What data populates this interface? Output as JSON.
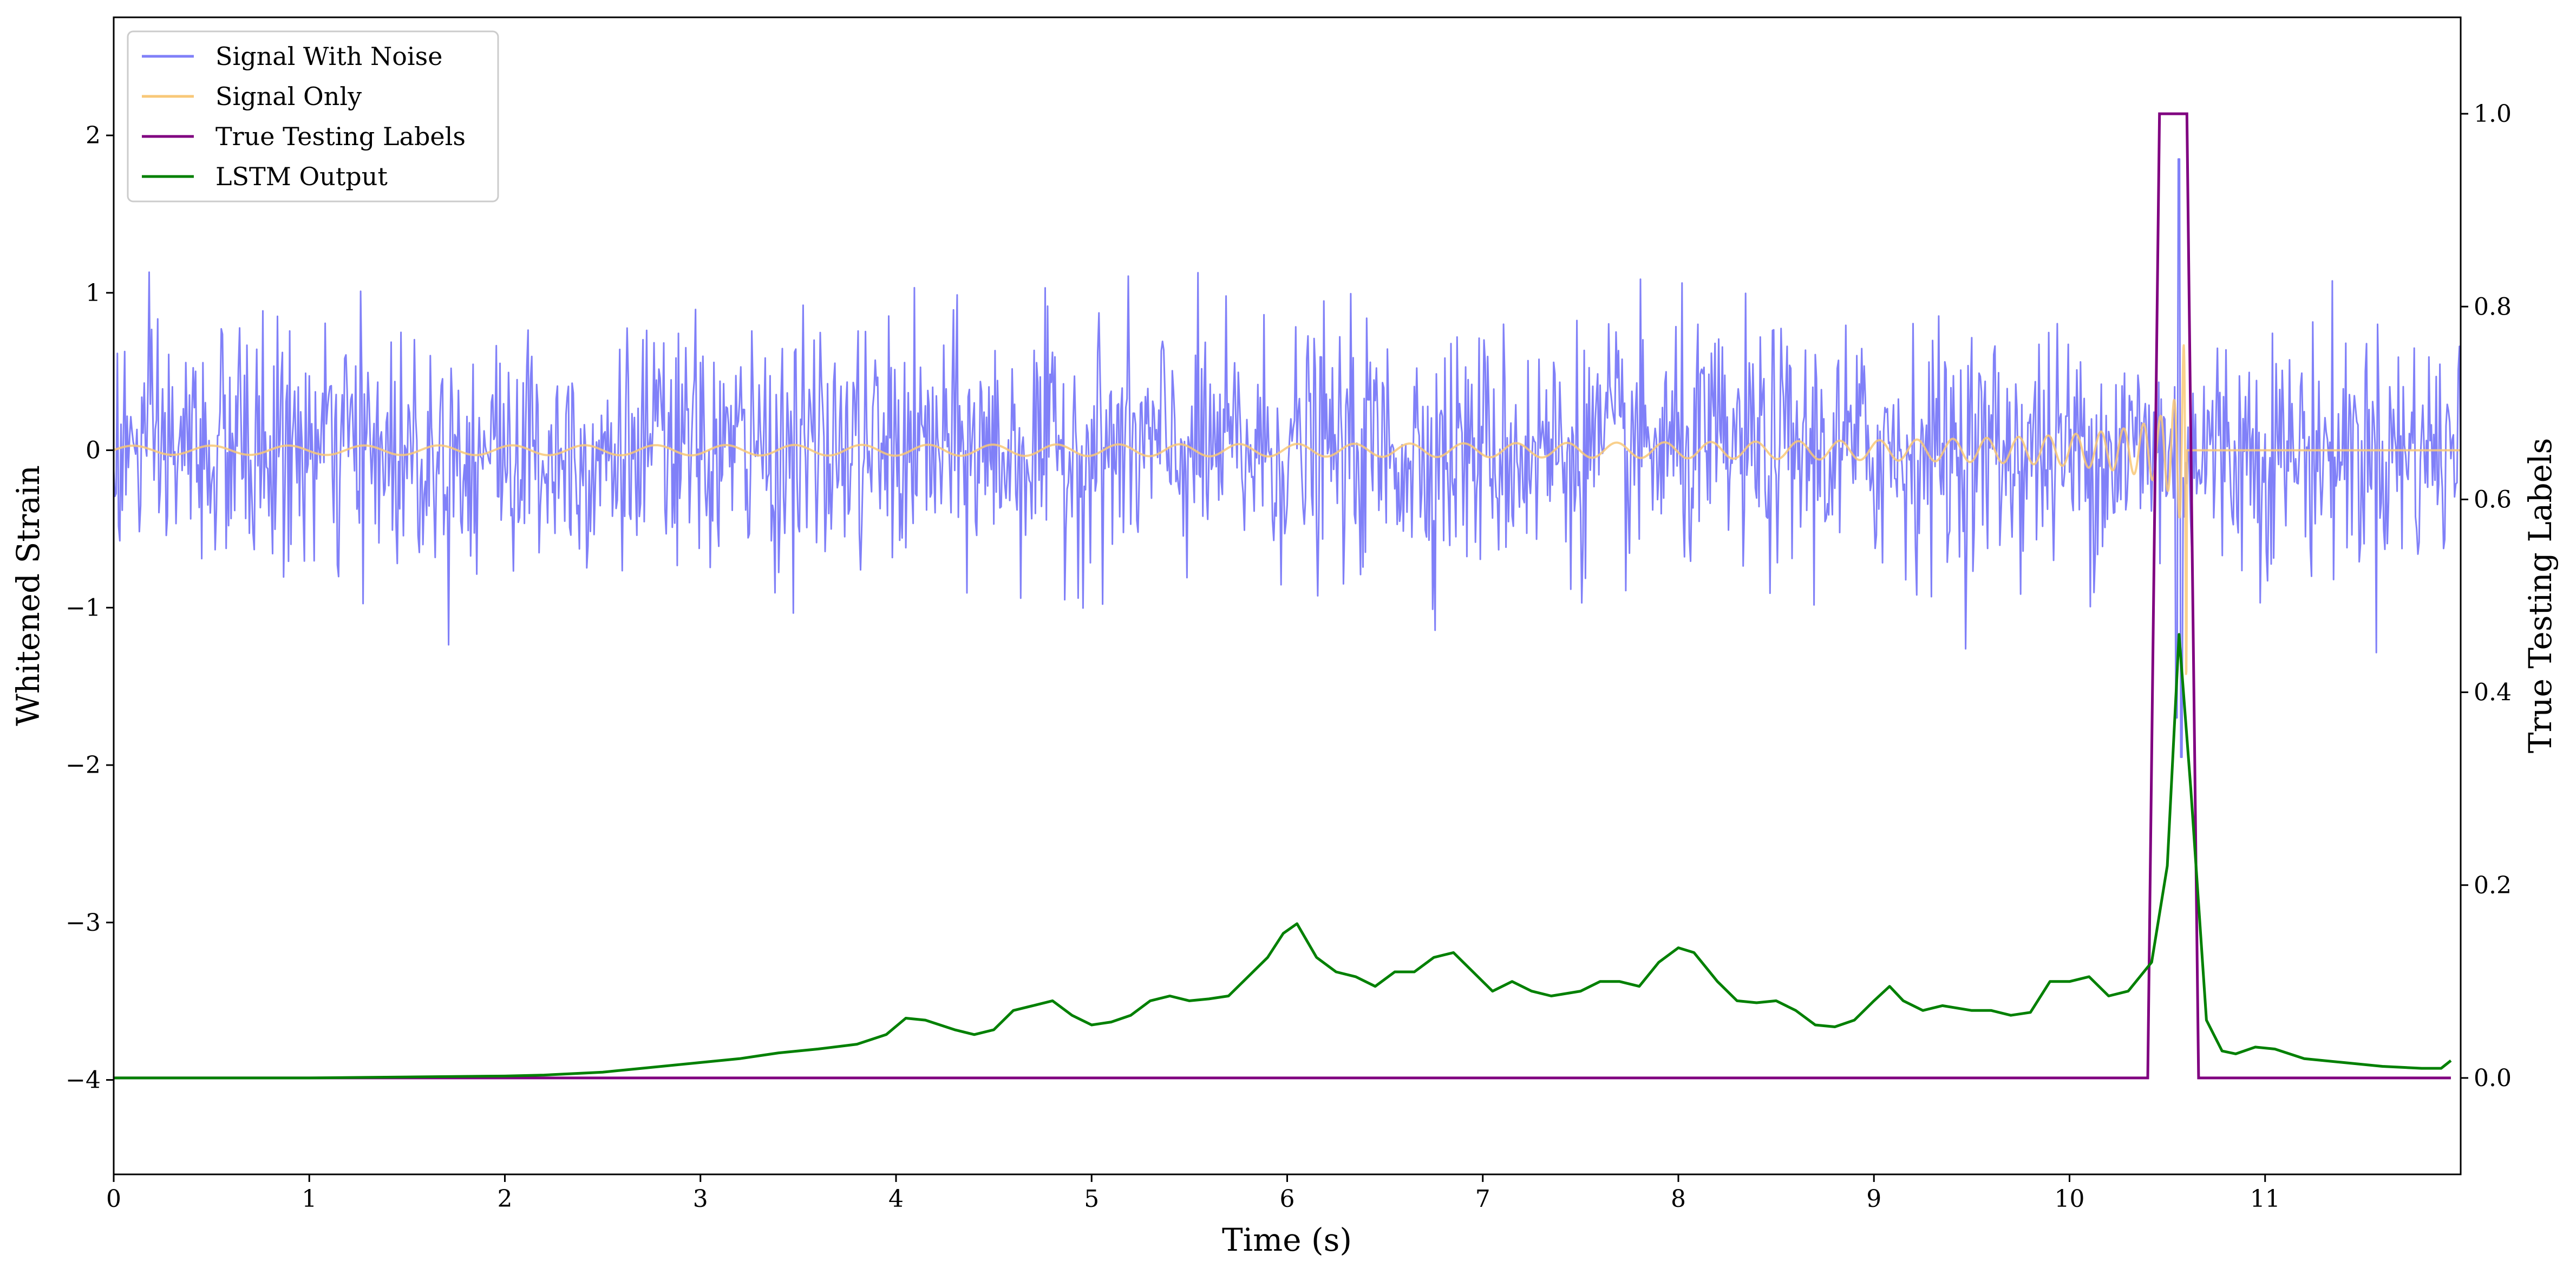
{
  "chart_data": {
    "type": "line",
    "xlabel": "Time (s)",
    "ylabel": "Whitened Strain",
    "ylabel_right": "True Testing Labels",
    "xlim": [
      0,
      12
    ],
    "ylim": [
      -4.6,
      2.75
    ],
    "ylim_right": [
      -0.1,
      1.1
    ],
    "x_ticks": [
      0,
      1,
      2,
      3,
      4,
      5,
      6,
      7,
      8,
      9,
      10,
      11
    ],
    "y_ticks": [
      2,
      1,
      0,
      -1,
      -2,
      -3,
      -4
    ],
    "y_tick_labels": [
      "2",
      "1",
      "0",
      "−1",
      "−2",
      "−3",
      "−4"
    ],
    "y_right_ticks": [
      1.0,
      0.8,
      0.6,
      0.4,
      0.2,
      0.0
    ],
    "y_right_tick_labels": [
      "1.0",
      "0.8",
      "0.6",
      "0.4",
      "0.2",
      "0.0"
    ],
    "grid": false,
    "legend_position": "top-left",
    "series": [
      {
        "name": "Signal With Noise",
        "axis": "left",
        "color": "#8080f8",
        "noise_std": 0.38,
        "noise_peak": 1.55,
        "points_per_second": 160,
        "burst": {
          "x": 10.56,
          "y": 1.85,
          "min": -1.95
        }
      },
      {
        "name": "Signal Only",
        "axis": "left",
        "color": "#f8c878",
        "chirp": {
          "start": 0,
          "merger": 10.6,
          "peak_amplitude": 1.45,
          "base_amplitude": 0.01,
          "end_frequency": 60
        }
      },
      {
        "name": "True Testing Labels",
        "axis": "right",
        "color": "#800080",
        "x": [
          0,
          10.4,
          10.46,
          10.6,
          10.66,
          11.95
        ],
        "values": [
          0,
          0,
          1,
          1,
          0,
          0
        ]
      },
      {
        "name": "LSTM Output",
        "axis": "right",
        "color": "#008000",
        "x": [
          0,
          1,
          1.5,
          2,
          2.2,
          2.5,
          2.7,
          3,
          3.2,
          3.4,
          3.6,
          3.8,
          3.95,
          4.05,
          4.15,
          4.3,
          4.4,
          4.5,
          4.6,
          4.7,
          4.8,
          4.9,
          5.0,
          5.1,
          5.2,
          5.3,
          5.4,
          5.5,
          5.6,
          5.7,
          5.8,
          5.9,
          5.98,
          6.05,
          6.15,
          6.25,
          6.35,
          6.45,
          6.55,
          6.65,
          6.75,
          6.85,
          6.95,
          7.05,
          7.15,
          7.25,
          7.35,
          7.5,
          7.6,
          7.7,
          7.8,
          7.9,
          8.0,
          8.08,
          8.2,
          8.3,
          8.4,
          8.5,
          8.6,
          8.7,
          8.8,
          8.9,
          9.0,
          9.08,
          9.15,
          9.25,
          9.35,
          9.5,
          9.6,
          9.7,
          9.8,
          9.9,
          10.0,
          10.1,
          10.2,
          10.3,
          10.42,
          10.5,
          10.56,
          10.62,
          10.7,
          10.78,
          10.85,
          10.95,
          11.05,
          11.2,
          11.4,
          11.6,
          11.8,
          11.9,
          11.95
        ],
        "values": [
          0,
          0,
          0.001,
          0.002,
          0.003,
          0.006,
          0.01,
          0.016,
          0.02,
          0.026,
          0.03,
          0.035,
          0.045,
          0.062,
          0.06,
          0.05,
          0.045,
          0.05,
          0.07,
          0.075,
          0.08,
          0.065,
          0.055,
          0.058,
          0.065,
          0.08,
          0.085,
          0.08,
          0.082,
          0.085,
          0.105,
          0.125,
          0.15,
          0.16,
          0.125,
          0.11,
          0.105,
          0.095,
          0.11,
          0.11,
          0.125,
          0.13,
          0.11,
          0.09,
          0.1,
          0.09,
          0.085,
          0.09,
          0.1,
          0.1,
          0.095,
          0.12,
          0.135,
          0.13,
          0.1,
          0.08,
          0.078,
          0.08,
          0.07,
          0.055,
          0.053,
          0.06,
          0.08,
          0.095,
          0.08,
          0.07,
          0.075,
          0.07,
          0.07,
          0.065,
          0.068,
          0.1,
          0.1,
          0.105,
          0.085,
          0.09,
          0.12,
          0.22,
          0.46,
          0.3,
          0.06,
          0.028,
          0.025,
          0.032,
          0.03,
          0.02,
          0.016,
          0.012,
          0.01,
          0.01,
          0.018
        ]
      }
    ]
  }
}
